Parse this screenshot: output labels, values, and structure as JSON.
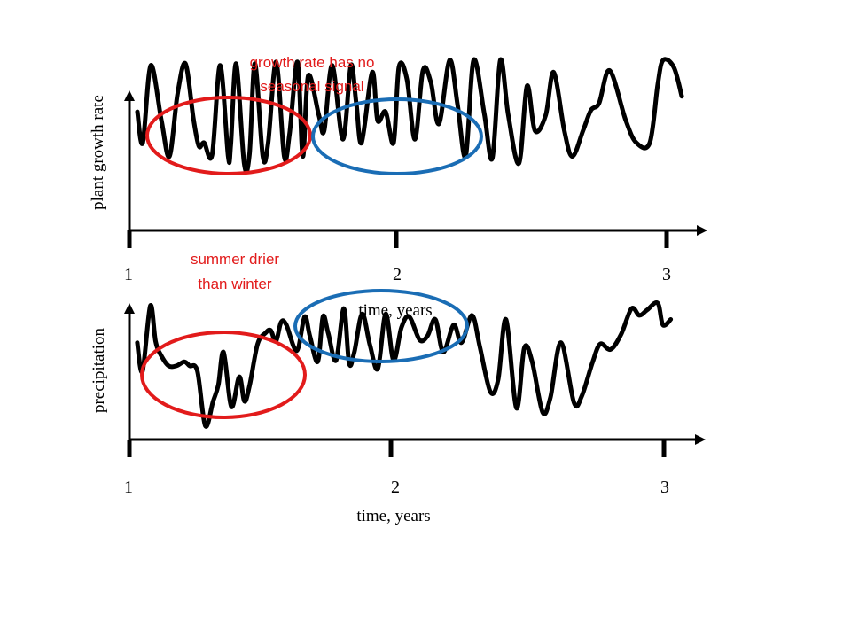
{
  "chart_data": [
    {
      "type": "line",
      "ylabel": "plant growth rate",
      "xlabel": "time, years",
      "x_ticks": [
        "1",
        "2",
        "3"
      ],
      "xlim": [
        1,
        3.07
      ],
      "ylim": [
        0,
        1
      ],
      "series": [
        {
          "x": [
            1.03,
            1.05,
            1.08,
            1.12,
            1.15,
            1.18,
            1.21,
            1.24,
            1.26,
            1.28,
            1.31,
            1.34,
            1.37,
            1.38,
            1.4,
            1.43,
            1.45,
            1.47,
            1.5,
            1.52,
            1.55,
            1.58,
            1.6,
            1.63,
            1.65,
            1.67,
            1.71,
            1.73,
            1.76,
            1.8,
            1.83,
            1.85,
            1.87,
            1.91,
            1.93,
            1.96,
            1.99,
            2.01,
            2.04,
            2.07,
            2.1,
            2.13,
            2.16,
            2.2,
            2.23,
            2.26,
            2.29,
            2.33,
            2.36,
            2.39,
            2.42,
            2.46,
            2.49,
            2.52,
            2.56,
            2.59,
            2.63,
            2.66,
            2.7,
            2.73,
            2.76,
            2.8,
            2.86,
            2.9,
            2.95,
            2.98,
            3.0,
            3.04,
            3.07
          ],
          "values": [
            0.69,
            0.51,
            0.96,
            0.64,
            0.43,
            0.79,
            0.97,
            0.65,
            0.49,
            0.51,
            0.44,
            0.96,
            0.43,
            0.5,
            0.97,
            0.39,
            0.44,
            0.97,
            0.43,
            0.51,
            0.98,
            0.43,
            0.56,
            0.98,
            0.43,
            0.9,
            0.67,
            0.58,
            0.96,
            0.53,
            0.96,
            0.74,
            0.51,
            0.92,
            0.64,
            0.69,
            0.51,
            0.95,
            0.88,
            0.53,
            0.93,
            0.86,
            0.62,
            0.99,
            0.73,
            0.43,
            0.99,
            0.68,
            0.42,
            0.99,
            0.67,
            0.39,
            0.84,
            0.58,
            0.67,
            0.92,
            0.58,
            0.43,
            0.58,
            0.7,
            0.74,
            0.93,
            0.64,
            0.51,
            0.51,
            0.85,
            0.99,
            0.95,
            0.78
          ]
        }
      ],
      "annotations": [
        {
          "text": "growth rate has no seasonal signal",
          "color": "#e21b1b"
        }
      ]
    },
    {
      "type": "line",
      "ylabel": "precipitation",
      "xlabel": "time, years",
      "x_ticks": [
        "1",
        "2",
        "3"
      ],
      "xlim": [
        1,
        3.07
      ],
      "ylim": [
        0,
        1
      ],
      "series": [
        {
          "x": [
            1.03,
            1.05,
            1.08,
            1.1,
            1.12,
            1.15,
            1.18,
            1.21,
            1.23,
            1.26,
            1.29,
            1.32,
            1.34,
            1.36,
            1.39,
            1.42,
            1.44,
            1.46,
            1.49,
            1.52,
            1.54,
            1.56,
            1.58,
            1.6,
            1.64,
            1.67,
            1.69,
            1.72,
            1.74,
            1.76,
            1.79,
            1.82,
            1.84,
            1.86,
            1.89,
            1.92,
            1.95,
            1.98,
            2.01,
            2.04,
            2.07,
            2.11,
            2.14,
            2.17,
            2.2,
            2.24,
            2.27,
            2.31,
            2.34,
            2.38,
            2.41,
            2.44,
            2.48,
            2.51,
            2.54,
            2.58,
            2.61,
            2.65,
            2.7,
            2.73,
            2.77,
            2.8,
            2.84,
            2.88,
            2.92,
            2.95,
            2.98,
            3.02,
            3.04,
            3.07
          ],
          "values": [
            0.71,
            0.5,
            0.98,
            0.72,
            0.62,
            0.54,
            0.54,
            0.57,
            0.54,
            0.5,
            0.1,
            0.28,
            0.4,
            0.64,
            0.24,
            0.46,
            0.28,
            0.4,
            0.7,
            0.78,
            0.8,
            0.72,
            0.86,
            0.84,
            0.65,
            0.9,
            0.76,
            0.57,
            0.9,
            0.78,
            0.58,
            0.96,
            0.56,
            0.64,
            0.92,
            0.69,
            0.52,
            0.92,
            0.58,
            0.82,
            0.9,
            0.73,
            0.76,
            0.88,
            0.64,
            0.84,
            0.71,
            0.91,
            0.68,
            0.35,
            0.44,
            0.88,
            0.23,
            0.67,
            0.57,
            0.2,
            0.31,
            0.71,
            0.27,
            0.32,
            0.56,
            0.7,
            0.66,
            0.77,
            0.96,
            0.91,
            0.95,
            1.0,
            0.84,
            0.88
          ]
        }
      ],
      "annotations": [
        {
          "text": "summer drier than winter",
          "color": "#e21b1b"
        }
      ]
    }
  ],
  "colors": {
    "line": "#000000",
    "red_ellipse": "#e21b1b",
    "blue_ellipse": "#1a6db5"
  },
  "labels": {
    "top_note_line1": "growth rate has no",
    "top_note_line2": "seasonal signal",
    "mid_note_line1": "summer drier",
    "mid_note_line2": "than winter",
    "top_xlabel": "time, years",
    "bottom_xlabel": "time, years",
    "top_ylabel": "plant growth rate",
    "bottom_ylabel": "precipitation"
  }
}
